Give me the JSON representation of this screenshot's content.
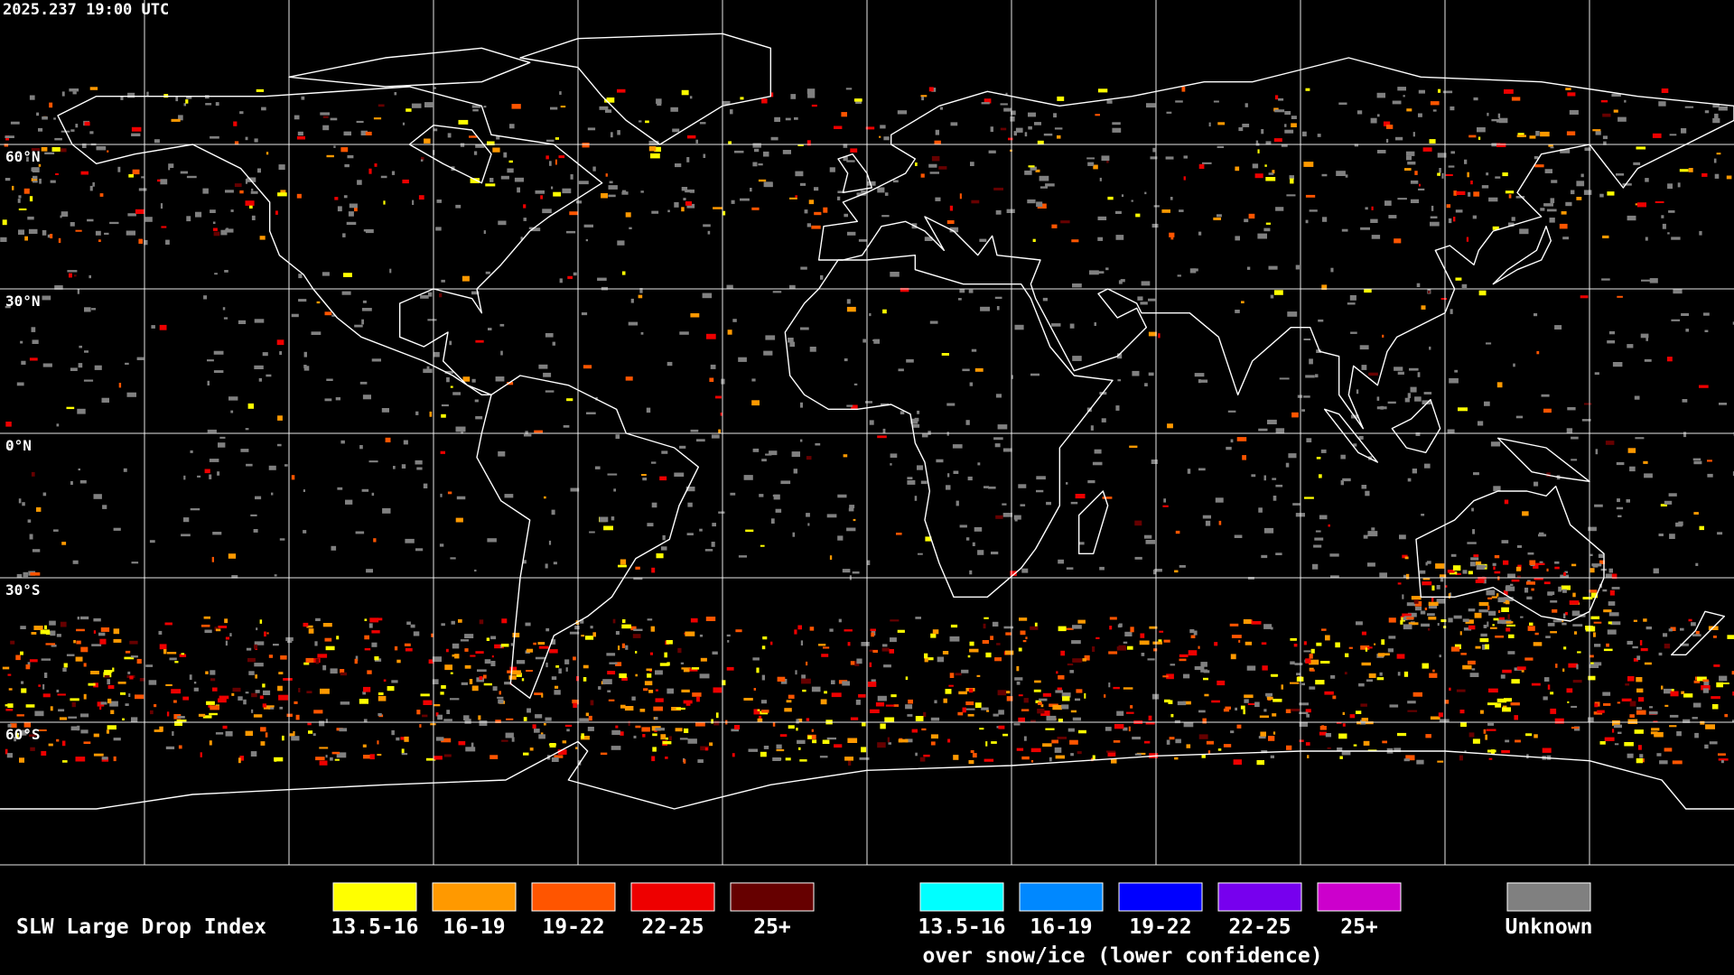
{
  "header": {
    "timestamp": "2025.237 19:00 UTC"
  },
  "map": {
    "latitude_labels": [
      "60°N",
      "30°N",
      "0°N",
      "30°S",
      "60°S"
    ]
  },
  "legend": {
    "title": "SLW Large Drop Index",
    "liquid": [
      {
        "label": "13.5-16",
        "color": "#ffff00"
      },
      {
        "label": "16-19",
        "color": "#ff9900"
      },
      {
        "label": "19-22",
        "color": "#ff5500"
      },
      {
        "label": "22-25",
        "color": "#ee0000"
      },
      {
        "label": "25+",
        "color": "#660000"
      }
    ],
    "ice": [
      {
        "label": "13.5-16",
        "color": "#00ffff"
      },
      {
        "label": "16-19",
        "color": "#0088ff"
      },
      {
        "label": "19-22",
        "color": "#0000ff"
      },
      {
        "label": "22-25",
        "color": "#7700ee"
      },
      {
        "label": "25+",
        "color": "#cc00cc"
      }
    ],
    "ice_caption": "over snow/ice (lower confidence)",
    "unknown": {
      "label": "Unknown",
      "color": "#808080"
    }
  }
}
